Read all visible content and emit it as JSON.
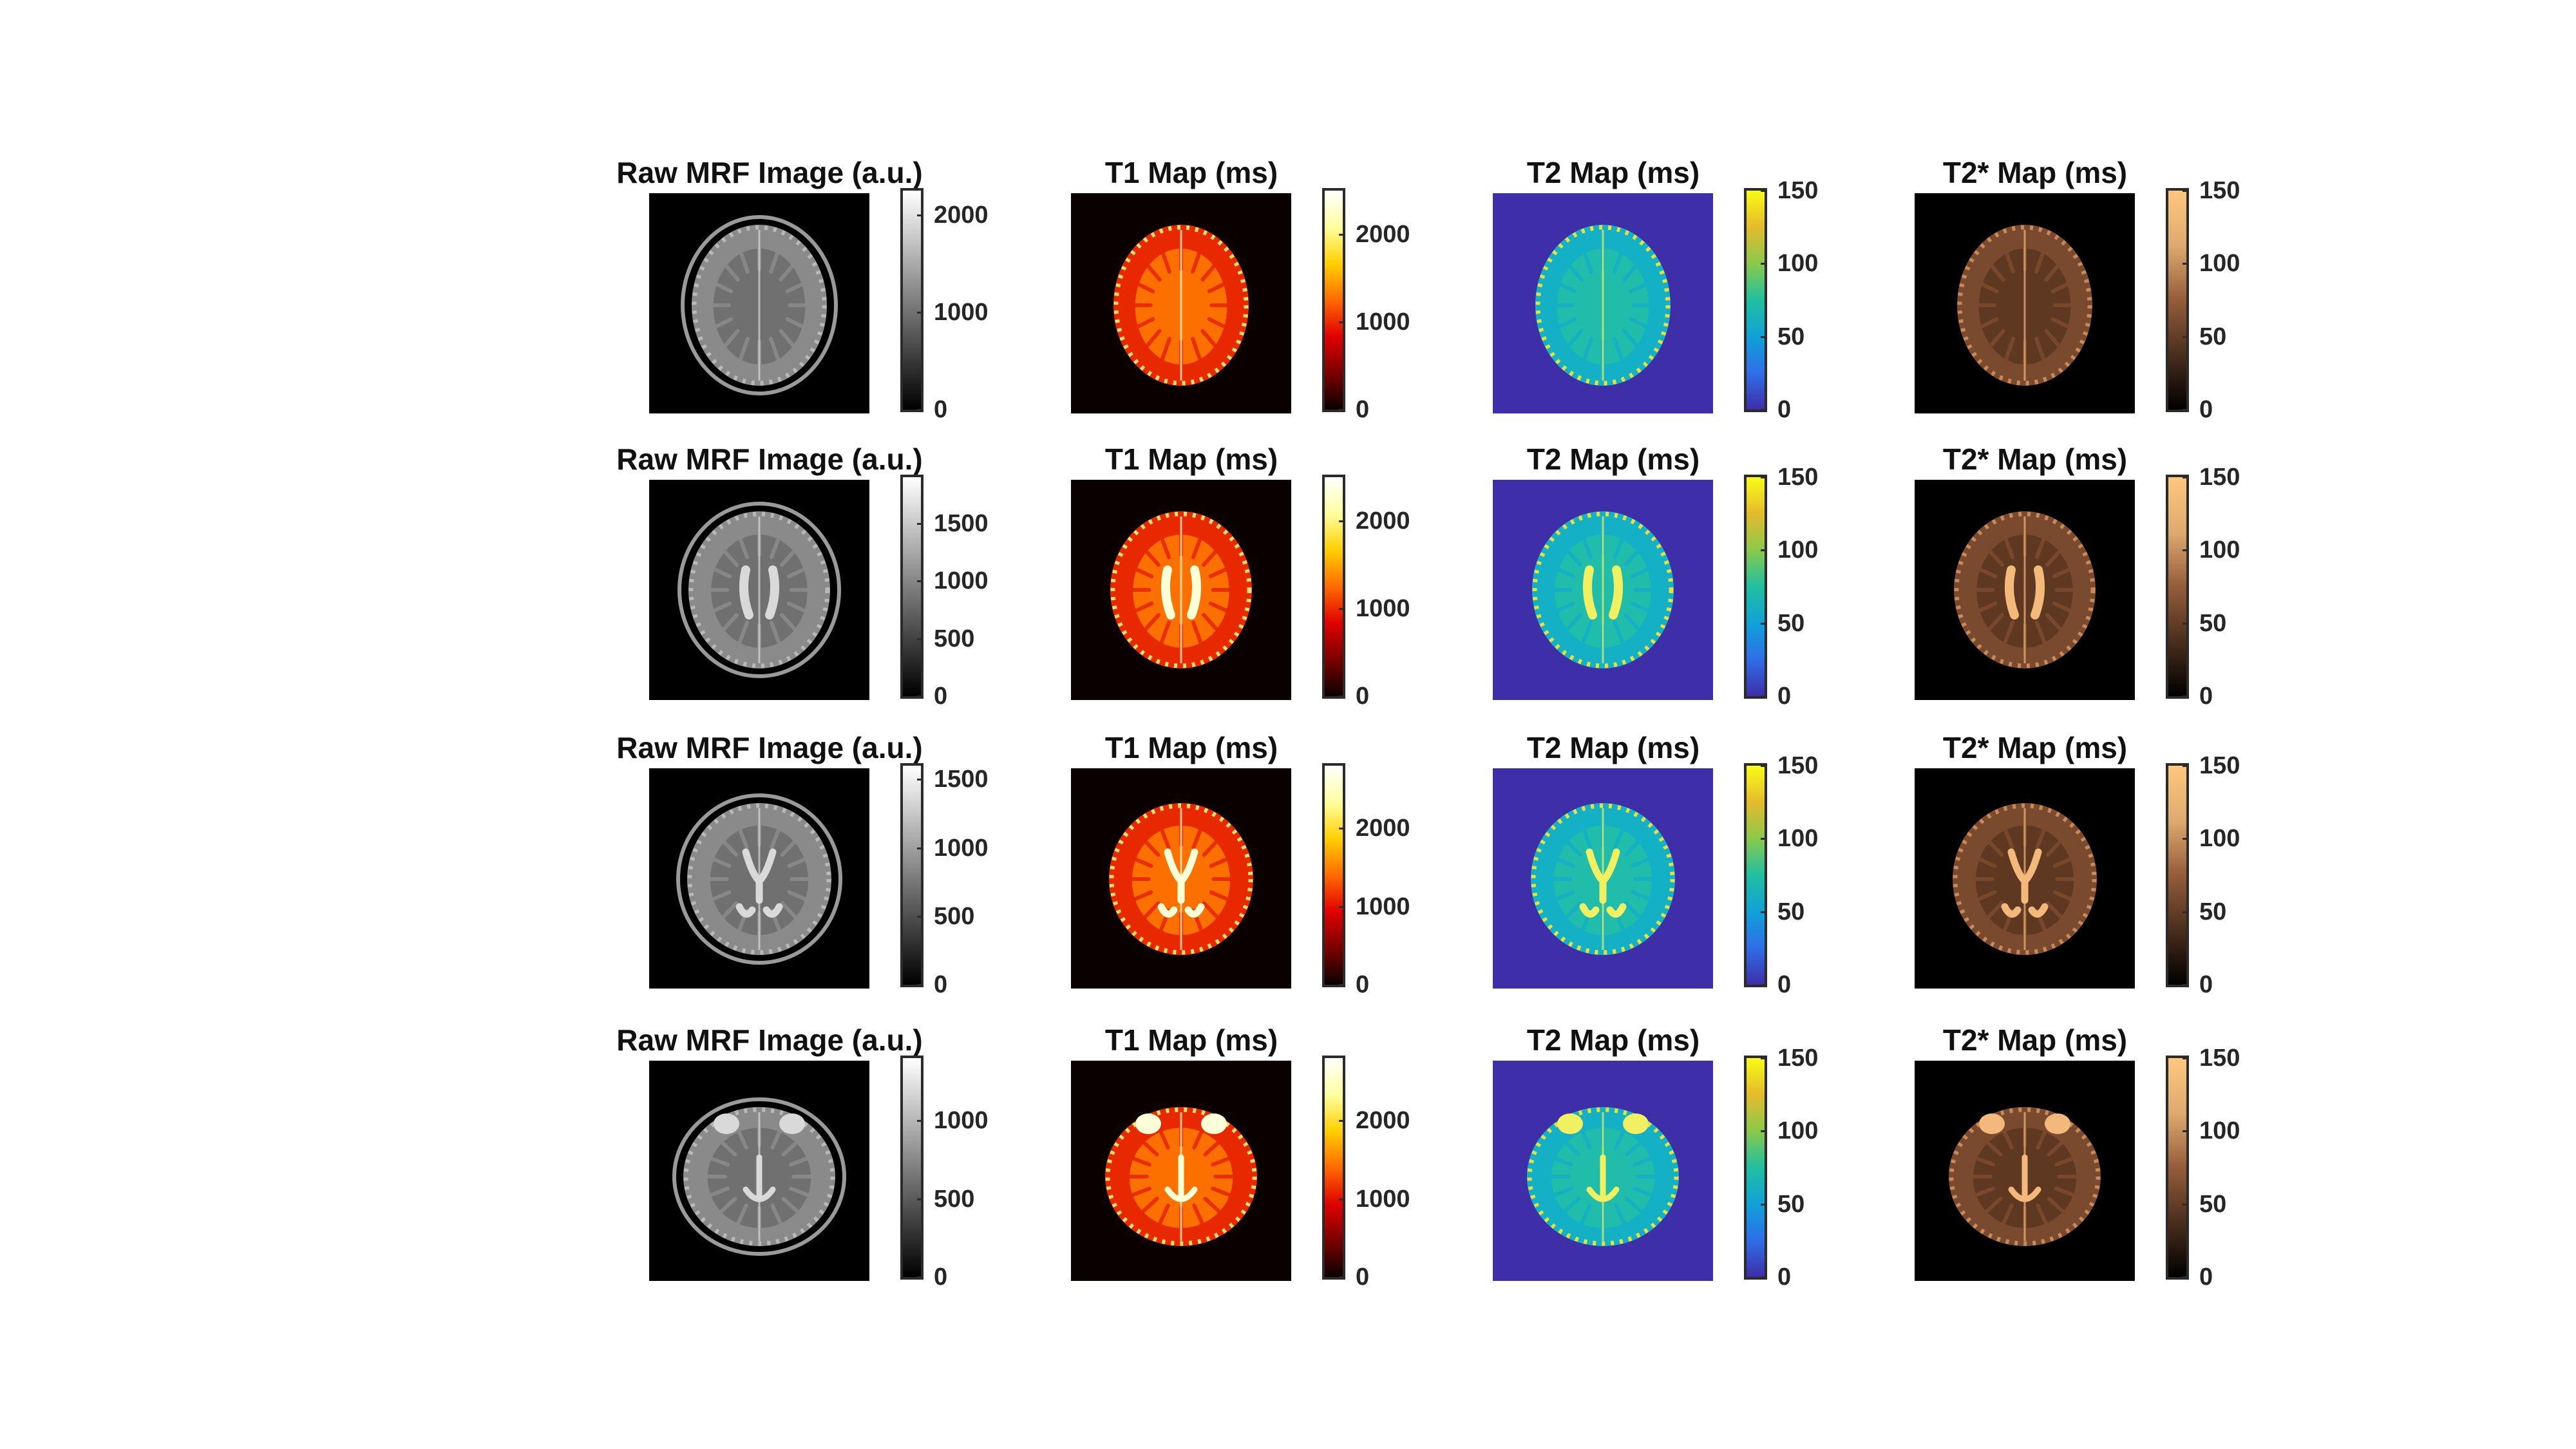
{
  "columns": [
    {
      "key": "raw",
      "title": "Raw MRF Image (a.u.)",
      "colormap": "gray",
      "background": "#000000",
      "rows": [
        {
          "max": 2250,
          "ticks": [
            "0",
            "1000",
            "2000"
          ],
          "tick_values": [
            0,
            1000,
            2000
          ]
        },
        {
          "max": 1900,
          "ticks": [
            "0",
            "500",
            "1000",
            "1500"
          ],
          "tick_values": [
            0,
            500,
            1000,
            1500
          ]
        },
        {
          "max": 1600,
          "ticks": [
            "0",
            "500",
            "1000",
            "1500"
          ],
          "tick_values": [
            0,
            500,
            1000,
            1500
          ]
        },
        {
          "max": 1400,
          "ticks": [
            "0",
            "500",
            "1000"
          ],
          "tick_values": [
            0,
            500,
            1000
          ]
        }
      ]
    },
    {
      "key": "t1",
      "title": "T1 Map (ms)",
      "colormap": "hot",
      "background": "#0a0000",
      "rows": [
        {
          "max": 2500,
          "ticks": [
            "0",
            "1000",
            "2000"
          ],
          "tick_values": [
            0,
            1000,
            2000
          ]
        },
        {
          "max": 2500,
          "ticks": [
            "0",
            "1000",
            "2000"
          ],
          "tick_values": [
            0,
            1000,
            2000
          ]
        },
        {
          "max": 2800,
          "ticks": [
            "0",
            "1000",
            "2000"
          ],
          "tick_values": [
            0,
            1000,
            2000
          ]
        },
        {
          "max": 2800,
          "ticks": [
            "0",
            "1000",
            "2000"
          ],
          "tick_values": [
            0,
            1000,
            2000
          ]
        }
      ]
    },
    {
      "key": "t2",
      "title": "T2 Map (ms)",
      "colormap": "parula",
      "background": "#3e2ea8",
      "rows": [
        {
          "max": 150,
          "ticks": [
            "0",
            "50",
            "100",
            "150"
          ],
          "tick_values": [
            0,
            50,
            100,
            150
          ]
        },
        {
          "max": 150,
          "ticks": [
            "0",
            "50",
            "100",
            "150"
          ],
          "tick_values": [
            0,
            50,
            100,
            150
          ]
        },
        {
          "max": 150,
          "ticks": [
            "0",
            "50",
            "100",
            "150"
          ],
          "tick_values": [
            0,
            50,
            100,
            150
          ]
        },
        {
          "max": 150,
          "ticks": [
            "0",
            "50",
            "100",
            "150"
          ],
          "tick_values": [
            0,
            50,
            100,
            150
          ]
        }
      ]
    },
    {
      "key": "t2star",
      "title": "T2* Map (ms)",
      "colormap": "copper",
      "background": "#000000",
      "rows": [
        {
          "max": 150,
          "ticks": [
            "0",
            "50",
            "100",
            "150"
          ],
          "tick_values": [
            0,
            50,
            100,
            150
          ]
        },
        {
          "max": 150,
          "ticks": [
            "0",
            "50",
            "100",
            "150"
          ],
          "tick_values": [
            0,
            50,
            100,
            150
          ]
        },
        {
          "max": 150,
          "ticks": [
            "0",
            "50",
            "100",
            "150"
          ],
          "tick_values": [
            0,
            50,
            100,
            150
          ]
        },
        {
          "max": 150,
          "ticks": [
            "0",
            "50",
            "100",
            "150"
          ],
          "tick_values": [
            0,
            50,
            100,
            150
          ]
        }
      ]
    }
  ],
  "colors": {
    "gray_gradient": [
      "#000000",
      "#ffffff"
    ],
    "hot_gradient": [
      "#0a0000",
      "#7a0000",
      "#e00000",
      "#ff6a00",
      "#ffd000",
      "#ffffa0",
      "#ffffff"
    ],
    "parula_gradient": [
      "#3e2ea8",
      "#2f6ee8",
      "#10a2d8",
      "#1fbfa0",
      "#8ac94b",
      "#e4bb2c",
      "#f9fb15"
    ],
    "copper_gradient": [
      "#000000",
      "#4a2e1d",
      "#945d3b",
      "#ddaa6f",
      "#ffc77f"
    ]
  }
}
